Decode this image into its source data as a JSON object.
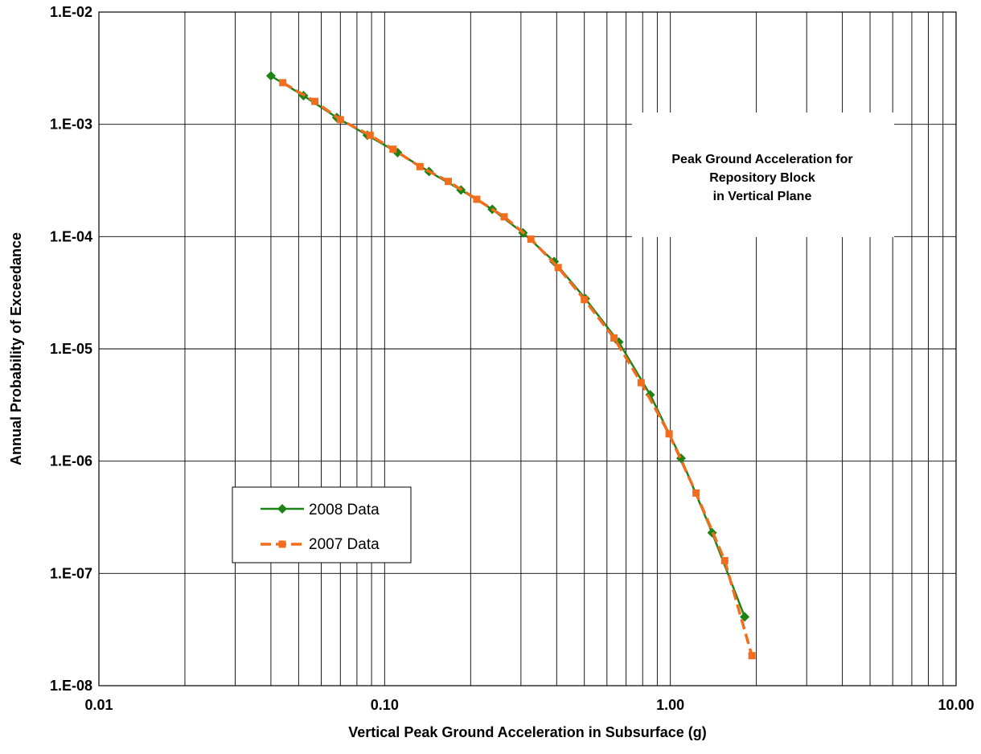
{
  "chart_data": {
    "type": "line",
    "title": "",
    "xlabel": "Vertical Peak Ground Acceleration in Subsurface (g)",
    "ylabel": "Annual Probability of Exceedance",
    "xscale": "log",
    "yscale": "log",
    "xlim": [
      0.01,
      10
    ],
    "ylim": [
      1e-08,
      0.01
    ],
    "grid": true,
    "x_tick_labels": [
      "0.01",
      "0.10",
      "1.00",
      "10.00"
    ],
    "y_tick_labels": [
      "1.E-02",
      "1.E-03",
      "1.E-04",
      "1.E-05",
      "1.E-06",
      "1.E-07",
      "1.E-08"
    ],
    "annotation": [
      "Peak Ground Acceleration for",
      "Repository Block",
      "in Vertical Plane"
    ],
    "legend_position": "lower-left",
    "series": [
      {
        "name": "2008 Data",
        "color": "#1e8214",
        "line_style": "solid",
        "marker": "diamond",
        "x": [
          0.04,
          0.052,
          0.068,
          0.087,
          0.111,
          0.143,
          0.185,
          0.238,
          0.305,
          0.392,
          0.504,
          0.66,
          0.85,
          1.09,
          1.4,
          1.82
        ],
        "y": [
          0.0027,
          0.0018,
          0.00115,
          0.0008,
          0.00056,
          0.00038,
          0.00026,
          0.000175,
          0.000108,
          6e-05,
          2.8e-05,
          1.15e-05,
          3.9e-06,
          1.06e-06,
          2.3e-07,
          4.1e-08
        ]
      },
      {
        "name": "2007 Data",
        "color": "#f06e1e",
        "line_style": "dashed",
        "marker": "square",
        "x": [
          0.044,
          0.057,
          0.07,
          0.089,
          0.107,
          0.133,
          0.167,
          0.21,
          0.262,
          0.325,
          0.405,
          0.5,
          0.635,
          0.79,
          0.99,
          1.23,
          1.55,
          1.93
        ],
        "y": [
          0.00235,
          0.0016,
          0.0011,
          0.0008,
          0.0006,
          0.00042,
          0.00031,
          0.000215,
          0.00015,
          9.5e-05,
          5.3e-05,
          2.75e-05,
          1.25e-05,
          5e-06,
          1.75e-06,
          5.2e-07,
          1.3e-07,
          1.85e-08
        ]
      }
    ]
  }
}
